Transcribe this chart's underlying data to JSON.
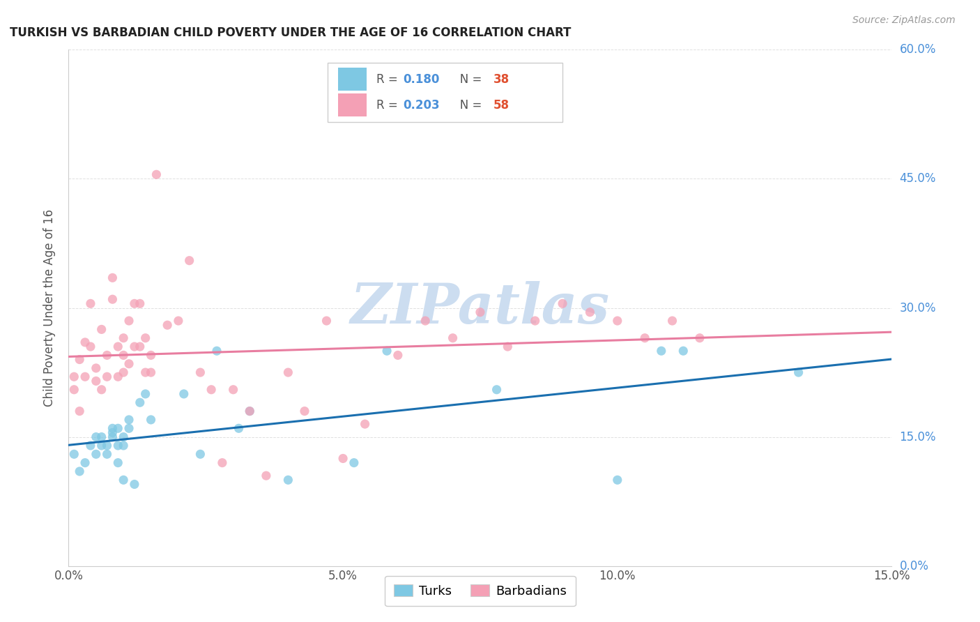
{
  "title": "TURKISH VS BARBADIAN CHILD POVERTY UNDER THE AGE OF 16 CORRELATION CHART",
  "source": "Source: ZipAtlas.com",
  "ylabel": "Child Poverty Under the Age of 16",
  "xlim": [
    0.0,
    0.15
  ],
  "ylim": [
    0.0,
    0.6
  ],
  "xticks": [
    0.0,
    0.05,
    0.1,
    0.15
  ],
  "yticks_right": [
    0.0,
    0.15,
    0.3,
    0.45,
    0.6
  ],
  "ytick_labels_right": [
    "0.0%",
    "15.0%",
    "30.0%",
    "45.0%",
    "60.0%"
  ],
  "xtick_labels": [
    "0.0%",
    "5.0%",
    "10.0%",
    "15.0%"
  ],
  "color_turks": "#7ec8e3",
  "color_barbadians": "#f4a0b5",
  "color_turks_line": "#1a6faf",
  "color_barbadians_line": "#e87da0",
  "color_right_axis": "#4a90d9",
  "watermark": "ZIPatlas",
  "watermark_color": "#ccddf0",
  "turks_x": [
    0.001,
    0.002,
    0.003,
    0.004,
    0.005,
    0.005,
    0.006,
    0.006,
    0.007,
    0.007,
    0.008,
    0.008,
    0.008,
    0.009,
    0.009,
    0.009,
    0.01,
    0.01,
    0.01,
    0.011,
    0.011,
    0.012,
    0.013,
    0.014,
    0.015,
    0.021,
    0.024,
    0.027,
    0.031,
    0.033,
    0.04,
    0.052,
    0.058,
    0.078,
    0.1,
    0.108,
    0.112,
    0.133
  ],
  "turks_y": [
    0.13,
    0.11,
    0.12,
    0.14,
    0.13,
    0.15,
    0.14,
    0.15,
    0.13,
    0.14,
    0.15,
    0.155,
    0.16,
    0.16,
    0.14,
    0.12,
    0.15,
    0.14,
    0.1,
    0.17,
    0.16,
    0.095,
    0.19,
    0.2,
    0.17,
    0.2,
    0.13,
    0.25,
    0.16,
    0.18,
    0.1,
    0.12,
    0.25,
    0.205,
    0.1,
    0.25,
    0.25,
    0.225
  ],
  "barbadians_x": [
    0.001,
    0.001,
    0.002,
    0.002,
    0.003,
    0.003,
    0.004,
    0.004,
    0.005,
    0.005,
    0.006,
    0.006,
    0.007,
    0.007,
    0.008,
    0.008,
    0.009,
    0.009,
    0.01,
    0.01,
    0.01,
    0.011,
    0.011,
    0.012,
    0.012,
    0.013,
    0.013,
    0.014,
    0.014,
    0.015,
    0.015,
    0.016,
    0.018,
    0.02,
    0.022,
    0.024,
    0.026,
    0.028,
    0.03,
    0.033,
    0.036,
    0.04,
    0.043,
    0.047,
    0.05,
    0.054,
    0.06,
    0.065,
    0.07,
    0.075,
    0.08,
    0.085,
    0.09,
    0.095,
    0.1,
    0.105,
    0.11,
    0.115
  ],
  "barbadians_y": [
    0.205,
    0.22,
    0.24,
    0.18,
    0.26,
    0.22,
    0.305,
    0.255,
    0.23,
    0.215,
    0.275,
    0.205,
    0.245,
    0.22,
    0.335,
    0.31,
    0.255,
    0.22,
    0.265,
    0.245,
    0.225,
    0.285,
    0.235,
    0.305,
    0.255,
    0.305,
    0.255,
    0.265,
    0.225,
    0.245,
    0.225,
    0.455,
    0.28,
    0.285,
    0.355,
    0.225,
    0.205,
    0.12,
    0.205,
    0.18,
    0.105,
    0.225,
    0.18,
    0.285,
    0.125,
    0.165,
    0.245,
    0.285,
    0.265,
    0.295,
    0.255,
    0.285,
    0.305,
    0.295,
    0.285,
    0.265,
    0.285,
    0.265
  ]
}
